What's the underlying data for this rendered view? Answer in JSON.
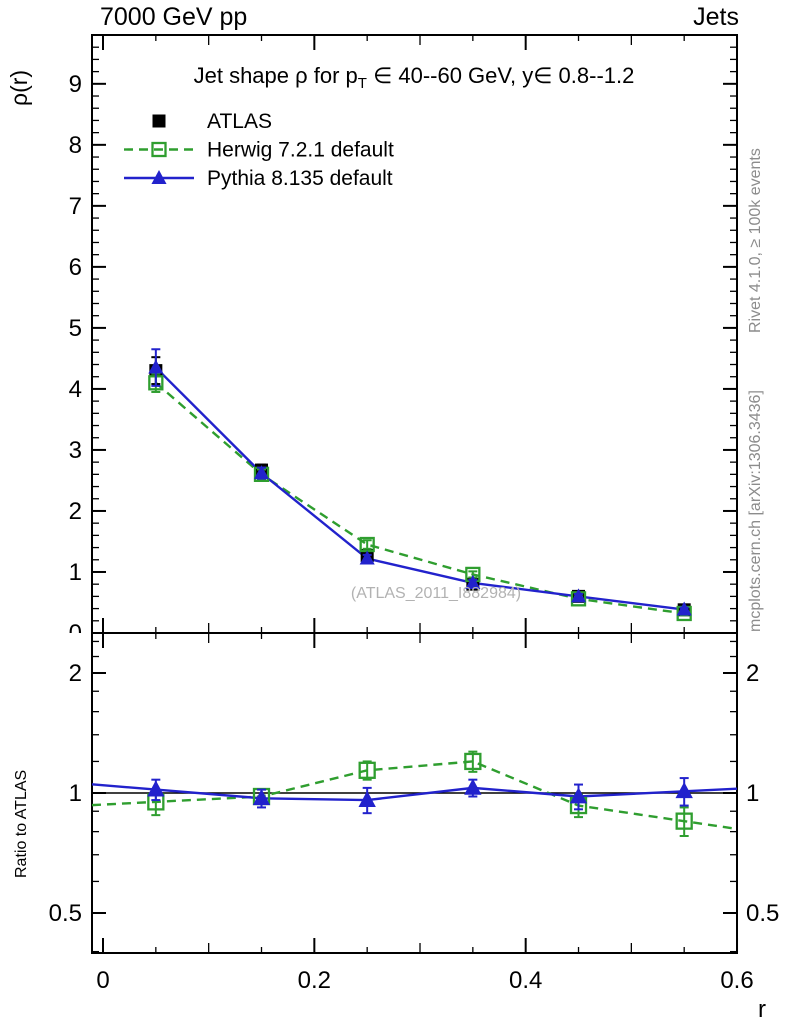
{
  "header": {
    "left": "7000 GeV pp",
    "right": "Jets"
  },
  "side_texts": {
    "top": "Rivet 4.1.0, ≥ 100k events",
    "bottom": "mcplots.cern.ch [arXiv:1306.3436]"
  },
  "watermark": "(ATLAS_2011_I882984)",
  "axis": {
    "x_label": "r",
    "y_label": "ρ(r)",
    "ratio_label": "Ratio to ATLAS"
  },
  "colors": {
    "atlas": "#000000",
    "herwig": "#2f9e2f",
    "pythia": "#2222cc",
    "frame": "#000000",
    "side_text": "#8c8c8c",
    "watermark": "#b2b2b2"
  },
  "chart_data": [
    {
      "type": "line",
      "title": "Jet shape ρ for p_T ∈ 40--60 GeV, y∈ 0.8--1.2",
      "title_parts": [
        "Jet shape ρ for p",
        "T",
        " ∈ 40--60 GeV, y∈ 0.8--1.2"
      ],
      "xlabel": "r",
      "ylabel": "ρ(r)",
      "xlim": [
        -0.0105,
        0.6
      ],
      "ylim": [
        0,
        9.8
      ],
      "grid": false,
      "legend_position": "top-left",
      "xticks": {
        "values": [
          0,
          0.2,
          0.4,
          0.6
        ],
        "labels": [
          "0",
          "0.2",
          "0.4",
          "0.6"
        ]
      },
      "yticks": {
        "values": [
          0,
          1,
          2,
          3,
          4,
          5,
          6,
          7,
          8,
          9
        ],
        "labels": [
          "0",
          "1",
          "2",
          "3",
          "4",
          "5",
          "6",
          "7",
          "8",
          "9"
        ]
      },
      "x": [
        0.05,
        0.15,
        0.25,
        0.35,
        0.45,
        0.55
      ],
      "series": [
        {
          "name": "ATLAS",
          "marker": "filled-square",
          "line": "none",
          "color": "#000000",
          "values": [
            4.3,
            2.67,
            1.27,
            0.8,
            0.6,
            0.38
          ],
          "errors": [
            0.22,
            0.09,
            0.06,
            0.05,
            0.04,
            0.03
          ]
        },
        {
          "name": "Herwig 7.2.1 default",
          "marker": "open-square",
          "line": "dashed",
          "color": "#2f9e2f",
          "values": [
            4.1,
            2.6,
            1.45,
            0.96,
            0.56,
            0.32
          ],
          "errors": [
            0.15,
            0.08,
            0.07,
            0.05,
            0.04,
            0.03
          ]
        },
        {
          "name": "Pythia 8.135 default",
          "marker": "filled-triangle",
          "line": "solid",
          "color": "#2222cc",
          "values": [
            4.35,
            2.62,
            1.22,
            0.82,
            0.6,
            0.385
          ],
          "errors": [
            0.3,
            0.09,
            0.06,
            0.05,
            0.04,
            0.03
          ]
        }
      ]
    },
    {
      "type": "ratio-line",
      "ylabel": "Ratio to ATLAS",
      "yscale": "log",
      "xlim": [
        -0.0105,
        0.6
      ],
      "ylim": [
        0.397,
        2.52
      ],
      "reference_line": 1,
      "yticks": {
        "values": [
          0.5,
          1,
          2
        ],
        "labels": [
          "0.5",
          "1",
          "2"
        ]
      },
      "yticks_minor": [
        0.4,
        0.6,
        0.7,
        0.8,
        0.9,
        1.2,
        1.4,
        1.6,
        1.8,
        2.2,
        2.4
      ],
      "xticks": {
        "values": [
          0,
          0.2,
          0.4,
          0.6
        ],
        "labels": [
          "0",
          "0.2",
          "0.4",
          "0.6"
        ]
      },
      "x": [
        0.05,
        0.15,
        0.25,
        0.35,
        0.45,
        0.55
      ],
      "series": [
        {
          "name": "Herwig 7.2.1 default",
          "marker": "open-square",
          "line": "dashed",
          "color": "#2f9e2f",
          "values": [
            0.95,
            0.98,
            1.14,
            1.2,
            0.93,
            0.85
          ],
          "errors": [
            0.07,
            0.04,
            0.06,
            0.07,
            0.06,
            0.07
          ]
        },
        {
          "name": "Pythia 8.135 default",
          "marker": "filled-triangle",
          "line": "solid",
          "color": "#2222cc",
          "values": [
            1.02,
            0.97,
            0.96,
            1.03,
            0.98,
            1.01
          ],
          "errors": [
            0.06,
            0.05,
            0.07,
            0.05,
            0.07,
            0.08
          ]
        }
      ]
    }
  ]
}
